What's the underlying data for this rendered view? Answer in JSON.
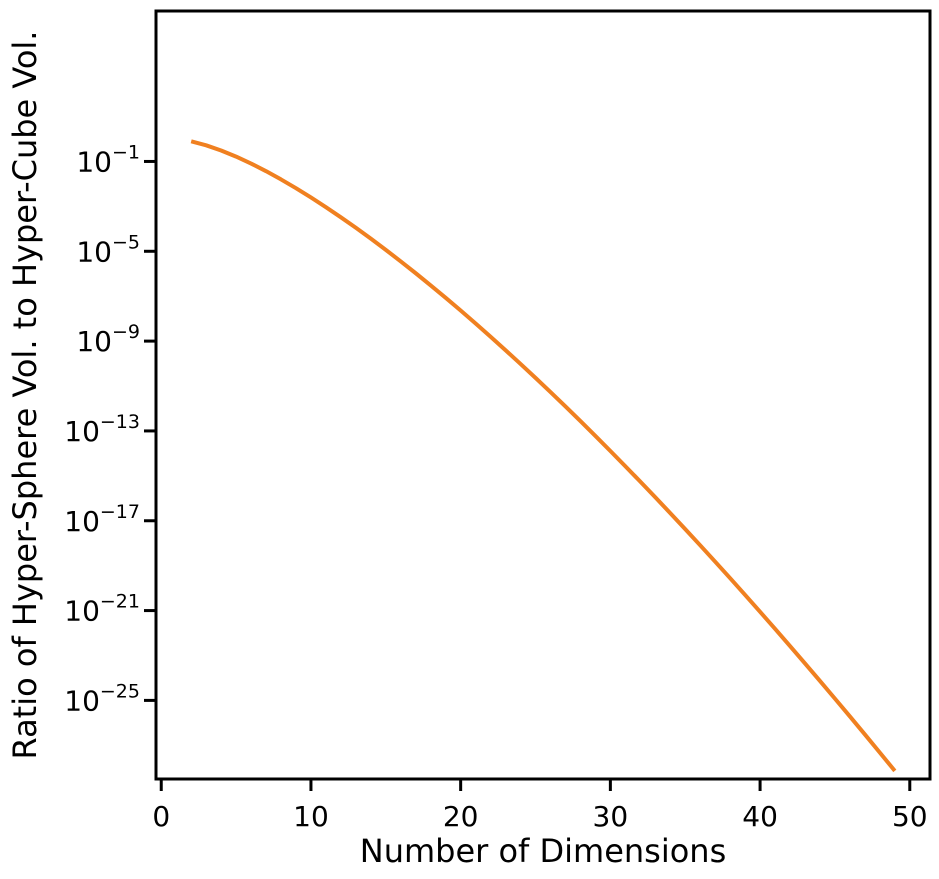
{
  "chart_data": {
    "type": "line",
    "title": "",
    "xlabel": "Number of Dimensions",
    "ylabel": "Ratio of Hyper-Sphere Vol. to Hyper-Cube Vol.",
    "y_scale": "log",
    "xlim": [
      -0.35,
      51.35
    ],
    "ylim_exponent": [
      -28.5,
      5.7
    ],
    "grid": false,
    "legend": "none",
    "x_ticks": [
      0,
      10,
      20,
      30,
      40,
      50
    ],
    "x_tick_labels": [
      "0",
      "10",
      "20",
      "30",
      "40",
      "50"
    ],
    "y_ticks": [
      {
        "value": 0.1,
        "base": "10",
        "exp": "−1"
      },
      {
        "value": 1e-05,
        "base": "10",
        "exp": "−5"
      },
      {
        "value": 1e-09,
        "base": "10",
        "exp": "−9"
      },
      {
        "value": 1e-13,
        "base": "10",
        "exp": "−13"
      },
      {
        "value": 1e-17,
        "base": "10",
        "exp": "−17"
      },
      {
        "value": 1e-21,
        "base": "10",
        "exp": "−21"
      },
      {
        "value": 1e-25,
        "base": "10",
        "exp": "−25"
      }
    ],
    "series": [
      {
        "color": "#f08020",
        "x": [
          2,
          3,
          4,
          5,
          6,
          7,
          8,
          9,
          10,
          11,
          12,
          13,
          14,
          15,
          16,
          17,
          18,
          19,
          20,
          21,
          22,
          23,
          24,
          25,
          26,
          27,
          28,
          29,
          30,
          31,
          32,
          33,
          34,
          35,
          36,
          37,
          38,
          39,
          40,
          41,
          42,
          43,
          44,
          45,
          46,
          47,
          48,
          49
        ],
        "y": [
          0.785398,
          0.523599,
          0.308425,
          0.164493,
          0.0807455,
          0.0369122,
          0.0158543,
          0.00644122,
          0.00249039,
          0.000919973,
          0.000325992,
          0.000111073,
          3.64625e-05,
          1.15539e-05,
          3.54086e-06,
          1.05096e-06,
          3.02578e-07,
          8.45964e-08,
          2.29904e-08,
          6.07951e-09,
          1.56578e-09,
          3.9308e-10,
          9.6264e-11,
          2.30135e-11,
          5.3741e-12,
          1.22664e-12,
          2.73827e-13,
          5.98207e-14,
          1.27951e-14,
          2.68086e-15,
          5.50519e-16,
          1.10849e-16,
          2.18917e-17,
          4.24204e-18,
          8.06856e-19,
          1.50699e-19,
          2.76486e-20,
          4.98416e-21,
          8.83098e-22,
          1.5383e-22,
          2.63506e-23,
          4.44023e-24,
          7.36103e-25,
          1.20094e-25,
          1.92831e-26,
          3.04786e-27,
          4.74314e-28,
          7.26821e-29
        ]
      }
    ]
  }
}
